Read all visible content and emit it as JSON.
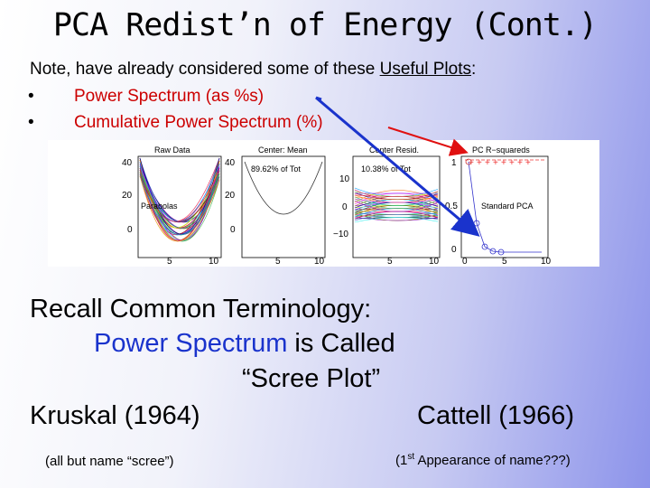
{
  "title": "PCA Redist’n of Energy (Cont.)",
  "note": {
    "prefix": "Note, have already considered some of these ",
    "link": "Useful Plots",
    "suffix": ":"
  },
  "bullets": [
    {
      "symbol": "•",
      "text": "Power Spectrum (as %s)"
    },
    {
      "symbol": "•",
      "text": "Cumulative Power Spectrum (%)"
    }
  ],
  "figure": {
    "panels": [
      {
        "title": "Raw Data",
        "annotation": "Parabolas",
        "yticks": [
          "40",
          "20",
          "0"
        ],
        "xticks": [
          "5",
          "10"
        ]
      },
      {
        "title": "Center: Mean",
        "annotation": "89.62% of Tot",
        "yticks": [
          "40",
          "20",
          "0"
        ],
        "xticks": [
          "5",
          "10"
        ]
      },
      {
        "title": "Center Resid.",
        "annotation": "10.38% of Tot",
        "yticks": [
          "10",
          "0",
          "−10"
        ],
        "xticks": [
          "5",
          "10"
        ]
      },
      {
        "title": "PC R−squareds",
        "annotation": "Standard PCA",
        "yticks": [
          "1",
          "0.5",
          "0"
        ],
        "xticks": [
          "0",
          "5",
          "10"
        ]
      }
    ]
  },
  "recall": {
    "line1": "Recall Common Terminology:",
    "line2_blue": "Power Spectrum",
    "line2_rest": " is Called",
    "line3": "“Scree Plot”"
  },
  "kruskal": {
    "name": "Kruskal (1964)",
    "note": "(all but name “scree”)"
  },
  "cattell": {
    "name": "Cattell (1966)",
    "note_prefix": "(1",
    "note_sup": "st",
    "note_suffix": " Appearance of name???)"
  },
  "colors": {
    "red_text": "#cc0000",
    "blue_text": "#1a33cc",
    "arrow_red": "#e01010",
    "arrow_blue": "#1a33cc"
  }
}
